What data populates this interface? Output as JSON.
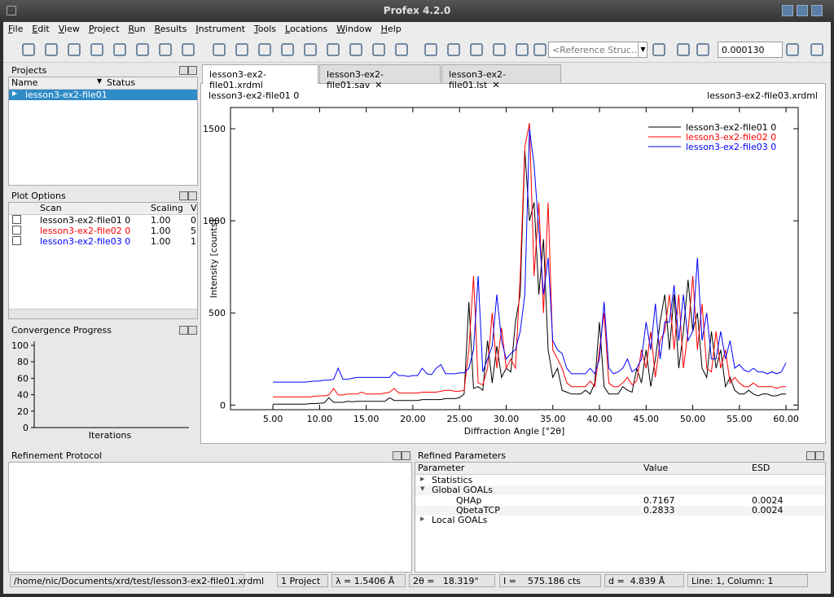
{
  "window": {
    "title": "Profex 4.2.0"
  },
  "menu": [
    "File",
    "Edit",
    "View",
    "Project",
    "Run",
    "Results",
    "Instrument",
    "Tools",
    "Locations",
    "Window",
    "Help"
  ],
  "toolbar": {
    "reference": "<Reference Struc...",
    "value": "0.000130"
  },
  "projects": {
    "title": "Projects",
    "columns": [
      "Name",
      "Status"
    ],
    "items": [
      "lesson3-ex2-file01"
    ]
  },
  "plot_options": {
    "title": "Plot Options",
    "columns": [
      "Scan",
      "Scaling",
      "V"
    ],
    "rows": [
      [
        "lesson3-ex2-file01 0",
        "1.00",
        "0"
      ],
      [
        "lesson3-ex2-file02 0",
        "1.00",
        "5"
      ],
      [
        "lesson3-ex2-file03 0",
        "1.00",
        "1"
      ]
    ]
  },
  "convergence": {
    "title": "Convergence Progress",
    "xlabel": "Iterations",
    "ylim": [
      0,
      100
    ],
    "yticks": [
      0,
      20,
      40,
      60,
      80,
      100
    ]
  },
  "tabs": [
    "lesson3-ex2-file01.xrdml",
    "lesson3-ex2-file01.sav",
    "lesson3-ex2-file01.lst"
  ],
  "chart_data": {
    "type": "line",
    "header_left": "lesson3-ex2-file01 0",
    "header_right": "lesson3-ex2-file03.xrdml",
    "xlabel": "Diffraction Angle [°2θ]",
    "ylabel": "Intensity [counts]",
    "xlim": [
      0.45,
      61.3
    ],
    "ylim": [
      -25,
      1615
    ],
    "xticks": [
      {
        "value": 5,
        "label": "5.00"
      },
      {
        "value": 10,
        "label": "10.00"
      },
      {
        "value": 15,
        "label": "15.00"
      },
      {
        "value": 20,
        "label": "20.00"
      },
      {
        "value": 25,
        "label": "25.00"
      },
      {
        "value": 30,
        "label": "30.00"
      },
      {
        "value": 35,
        "label": "35.00"
      },
      {
        "value": 40,
        "label": "40.00"
      },
      {
        "value": 45,
        "label": "45.00"
      },
      {
        "value": 50,
        "label": "50.00"
      },
      {
        "value": 55,
        "label": "55.00"
      },
      {
        "value": 60,
        "label": "60.00"
      }
    ],
    "yticks": [
      0,
      500,
      1000,
      1500
    ],
    "legend": "top-right",
    "x": [
      5,
      5.5,
      6,
      6.5,
      7,
      7.5,
      8,
      8.5,
      9,
      9.5,
      10,
      10.5,
      11,
      11.5,
      12,
      12.5,
      13,
      13.5,
      14,
      14.5,
      15,
      15.5,
      16,
      16.5,
      17,
      17.5,
      18,
      18.5,
      19,
      19.5,
      20,
      20.5,
      21,
      21.5,
      22,
      22.5,
      23,
      23.5,
      24,
      24.5,
      25,
      25.5,
      26,
      26.5,
      27,
      27.5,
      28,
      28.5,
      29,
      29.5,
      30,
      30.5,
      31,
      31.5,
      32,
      32.5,
      33,
      33.5,
      34,
      34.5,
      35,
      35.5,
      36,
      36.5,
      37,
      37.5,
      38,
      38.5,
      39,
      39.5,
      40,
      40.5,
      41,
      41.5,
      42,
      42.5,
      43,
      43.5,
      44,
      44.5,
      45,
      45.5,
      46,
      46.5,
      47,
      47.5,
      48,
      48.5,
      49,
      49.5,
      50,
      50.5,
      51,
      51.5,
      52,
      52.5,
      53,
      53.5,
      54,
      54.5,
      55,
      55.5,
      56,
      56.5,
      57,
      57.5,
      58,
      58.5,
      59,
      59.5,
      60
    ],
    "series": [
      {
        "name": "lesson3-ex2-file01 0",
        "color": "#000000",
        "values": [
          5,
          5,
          5,
          5,
          5,
          5,
          5,
          5,
          8,
          8,
          10,
          12,
          40,
          15,
          15,
          15,
          20,
          18,
          20,
          20,
          20,
          20,
          20,
          20,
          20,
          40,
          25,
          25,
          25,
          25,
          25,
          25,
          30,
          30,
          30,
          30,
          30,
          35,
          35,
          35,
          40,
          60,
          560,
          90,
          100,
          80,
          350,
          120,
          320,
          150,
          200,
          180,
          450,
          600,
          1380,
          1000,
          1100,
          600,
          900,
          300,
          150,
          200,
          80,
          70,
          60,
          60,
          60,
          80,
          60,
          120,
          450,
          100,
          60,
          60,
          60,
          100,
          80,
          70,
          200,
          120,
          300,
          100,
          250,
          450,
          600,
          300,
          600,
          200,
          400,
          680,
          400,
          500,
          200,
          150,
          400,
          200,
          300,
          100,
          150,
          80,
          60,
          60,
          80,
          60,
          50,
          60,
          60,
          50,
          50,
          60,
          60
        ]
      },
      {
        "name": "lesson3-ex2-file02 0",
        "color": "#ff0000",
        "values": [
          45,
          45,
          45,
          45,
          45,
          45,
          45,
          45,
          45,
          48,
          50,
          50,
          55,
          90,
          55,
          55,
          60,
          60,
          60,
          70,
          60,
          60,
          60,
          60,
          65,
          70,
          90,
          65,
          65,
          65,
          65,
          65,
          70,
          70,
          70,
          70,
          75,
          80,
          80,
          75,
          75,
          80,
          300,
          700,
          120,
          110,
          200,
          500,
          200,
          420,
          200,
          250,
          200,
          700,
          1400,
          1530,
          700,
          1100,
          500,
          1100,
          300,
          250,
          200,
          120,
          100,
          100,
          100,
          100,
          130,
          100,
          300,
          500,
          120,
          100,
          100,
          120,
          150,
          110,
          130,
          300,
          200,
          400,
          150,
          350,
          400,
          600,
          300,
          600,
          200,
          400,
          700,
          300,
          550,
          200,
          180,
          400,
          200,
          300,
          120,
          150,
          120,
          100,
          100,
          120,
          100,
          100,
          100,
          100,
          90,
          100,
          100
        ]
      },
      {
        "name": "lesson3-ex2-file03 0",
        "color": "#0000ff",
        "values": [
          125,
          125,
          125,
          125,
          125,
          125,
          125,
          125,
          128,
          130,
          130,
          135,
          135,
          140,
          200,
          140,
          140,
          145,
          150,
          150,
          150,
          150,
          150,
          150,
          150,
          150,
          180,
          160,
          160,
          155,
          160,
          160,
          200,
          170,
          165,
          200,
          220,
          170,
          170,
          170,
          175,
          175,
          200,
          300,
          700,
          180,
          250,
          320,
          600,
          350,
          250,
          280,
          300,
          400,
          600,
          1500,
          1300,
          950,
          600,
          800,
          350,
          300,
          280,
          200,
          170,
          170,
          170,
          170,
          200,
          170,
          250,
          560,
          200,
          170,
          180,
          200,
          250,
          180,
          200,
          250,
          450,
          300,
          550,
          250,
          450,
          450,
          650,
          350,
          600,
          350,
          400,
          800,
          350,
          500,
          250,
          250,
          400,
          250,
          350,
          200,
          220,
          190,
          180,
          200,
          180,
          180,
          170,
          180,
          170,
          180,
          230
        ]
      }
    ]
  },
  "refinement_protocol": {
    "title": "Refinement Protocol"
  },
  "refined_parameters": {
    "title": "Refined Parameters",
    "columns": [
      "Parameter",
      "Value",
      "ESD"
    ],
    "rows": [
      [
        "Statistics",
        "",
        ""
      ],
      [
        "Global GOALs",
        "",
        ""
      ],
      [
        "QHAp",
        "0.7167",
        "0.0024"
      ],
      [
        "QbetaTCP",
        "0.2833",
        "0.0024"
      ],
      [
        "Local GOALs",
        "",
        ""
      ]
    ]
  },
  "status": [
    "/home/nic/Documents/xrd/test/lesson3-ex2-file01.xrdml",
    "1 Project",
    "λ = 1.5406 Å",
    "2θ =   18.319°",
    "I =    575.186 cts",
    "d =  4.839 Å",
    "Line: 1, Column: 1"
  ]
}
